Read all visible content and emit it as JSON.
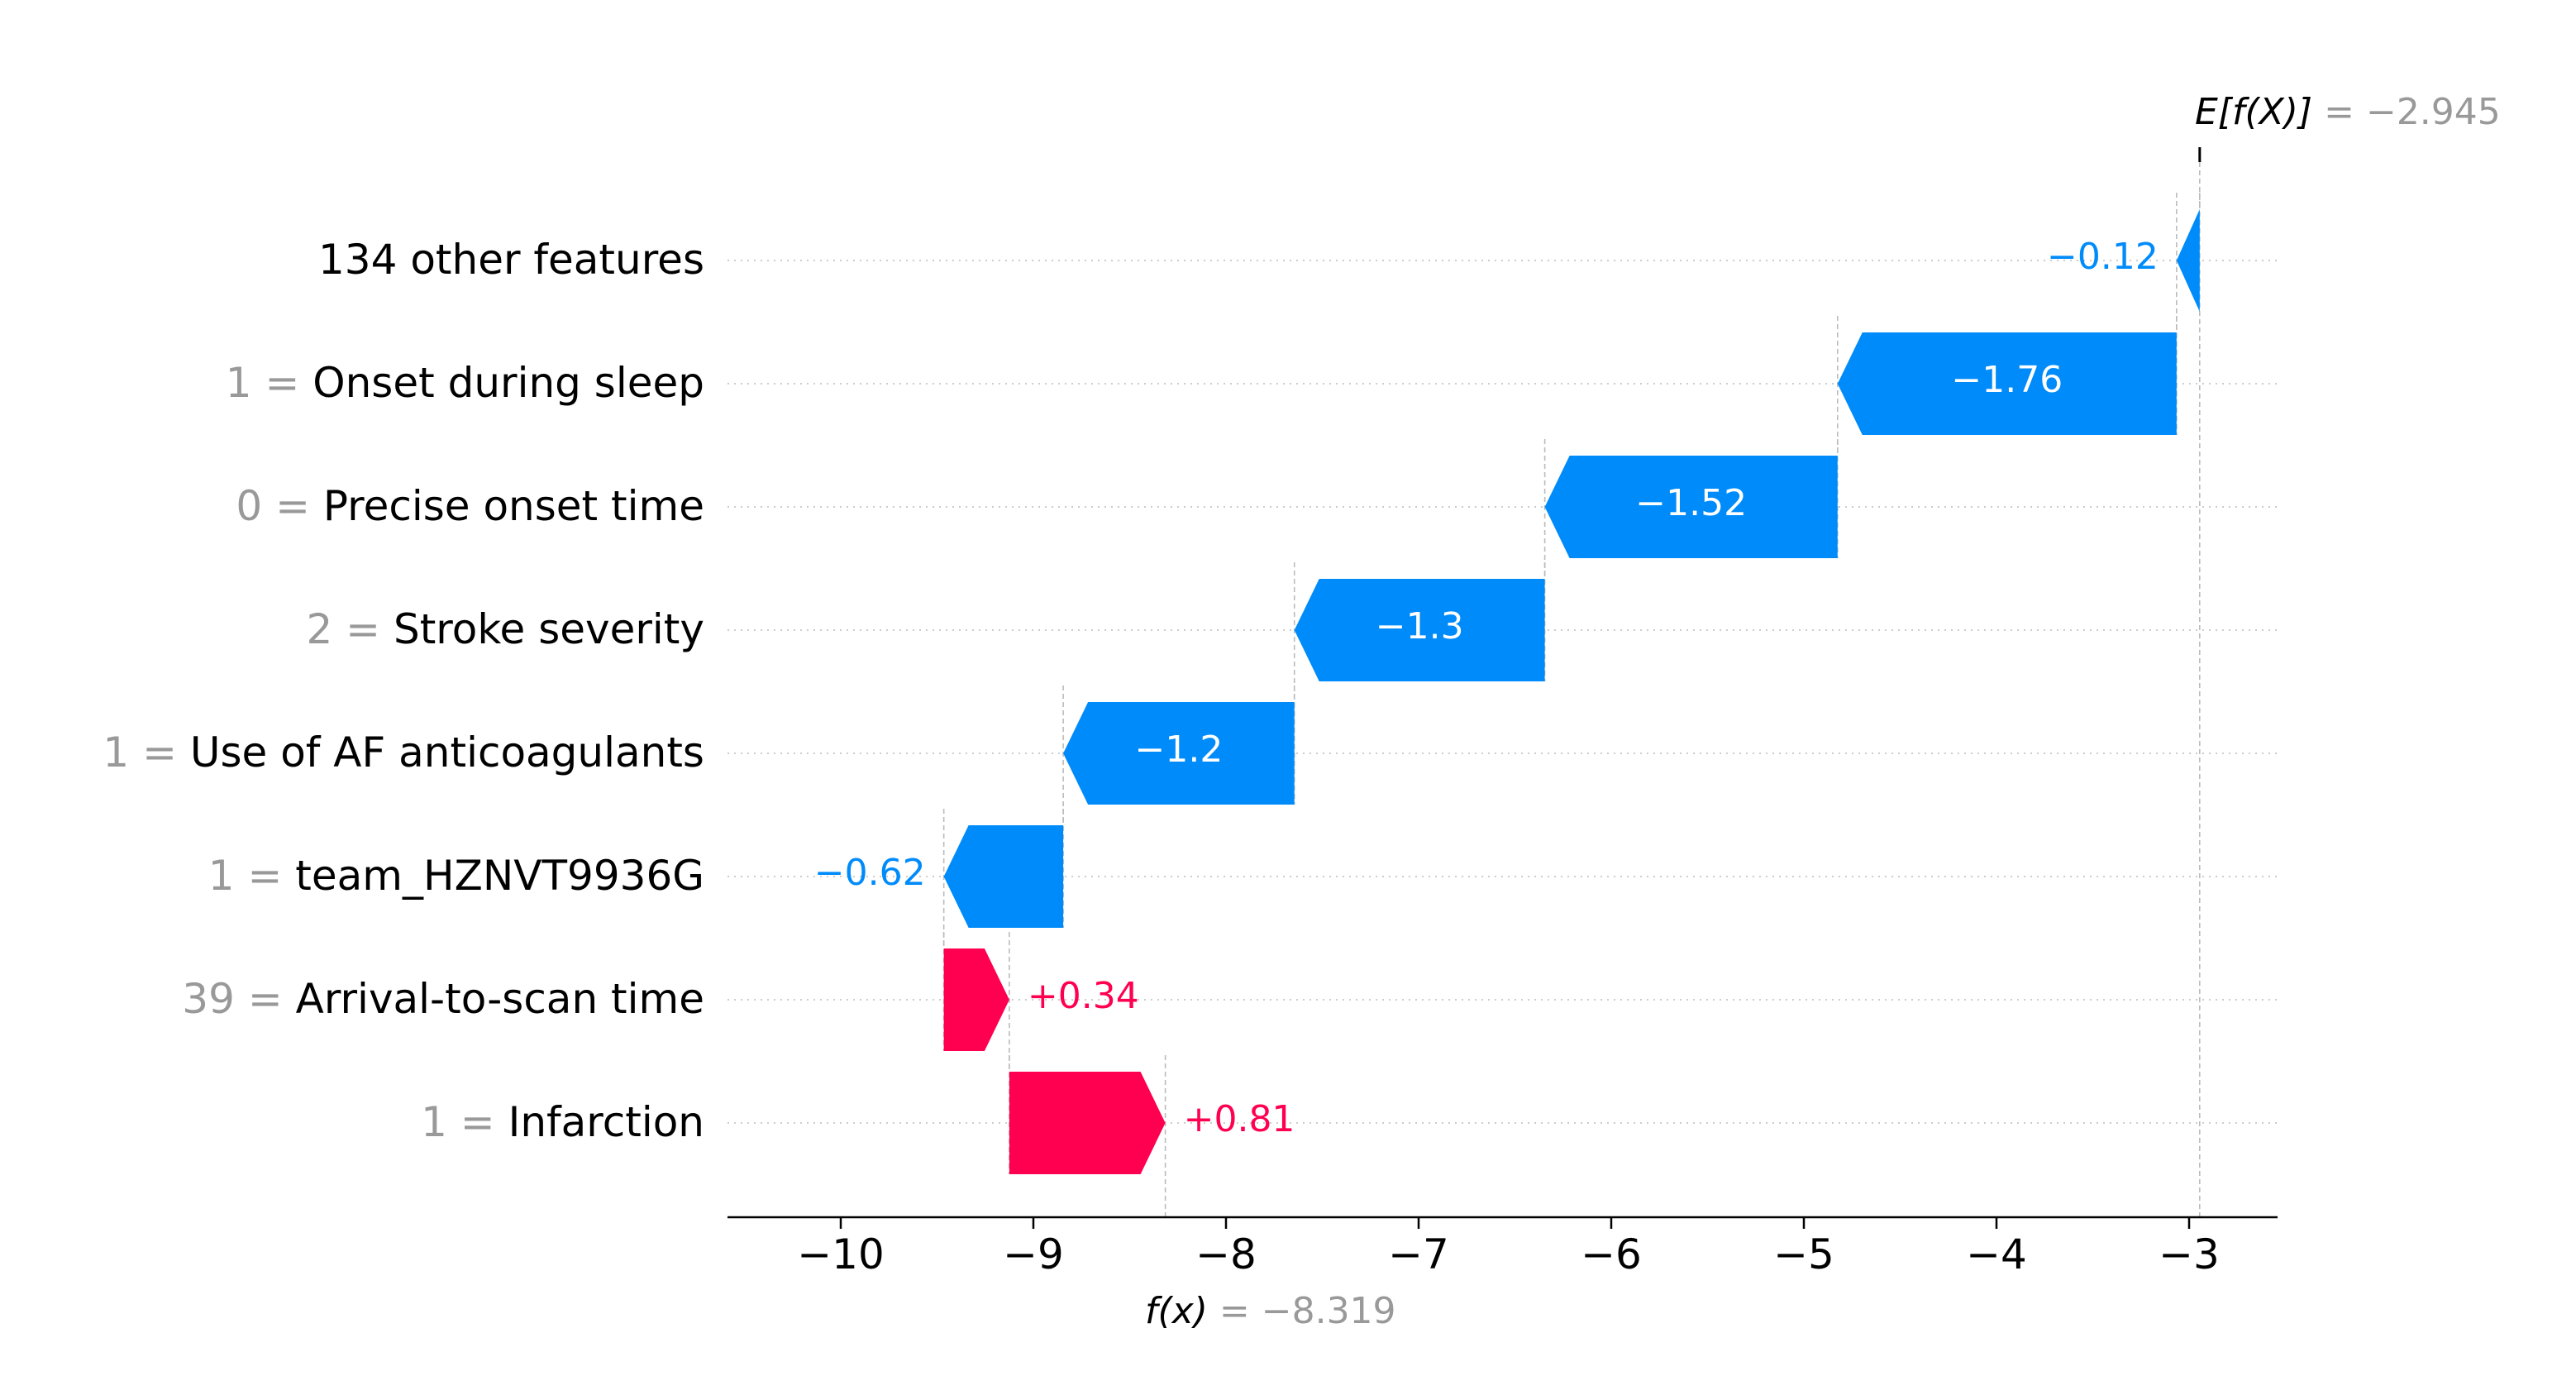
{
  "chart_data": {
    "type": "waterfall",
    "base_value": -2.945,
    "base_label": "E[f(X)]",
    "base_value_text": " = −2.945",
    "output_value": -8.319,
    "output_label": "f(x)",
    "output_value_text": " = −8.319",
    "xlim": [
      -10.6,
      -2.85
    ],
    "xticks": [
      -10,
      -9,
      -8,
      -7,
      -6,
      -5,
      -4,
      -3
    ],
    "xtick_labels": [
      "−10",
      "−9",
      "−8",
      "−7",
      "−6",
      "−5",
      "−4",
      "−3"
    ],
    "features": [
      {
        "value": "",
        "name": "134 other features",
        "shap": -0.12,
        "label": "−0.12"
      },
      {
        "value": "1",
        "name": "Onset during sleep",
        "shap": -1.76,
        "label": "−1.76"
      },
      {
        "value": "0",
        "name": "Precise onset time",
        "shap": -1.52,
        "label": "−1.52"
      },
      {
        "value": "2",
        "name": "Stroke severity",
        "shap": -1.3,
        "label": "−1.3"
      },
      {
        "value": "1",
        "name": "Use of AF anticoagulants",
        "shap": -1.2,
        "label": "−1.2"
      },
      {
        "value": "1",
        "name": "team_HZNVT9936G",
        "shap": -0.62,
        "label": "−0.62"
      },
      {
        "value": "39",
        "name": "Arrival-to-scan time",
        "shap": 0.34,
        "label": "+0.34"
      },
      {
        "value": "1",
        "name": "Infarction",
        "shap": 0.81,
        "label": "+0.81"
      }
    ],
    "colors": {
      "negative": "#008bfb",
      "positive": "#ff0051",
      "value_text": "#999999",
      "text": "#000000"
    }
  }
}
